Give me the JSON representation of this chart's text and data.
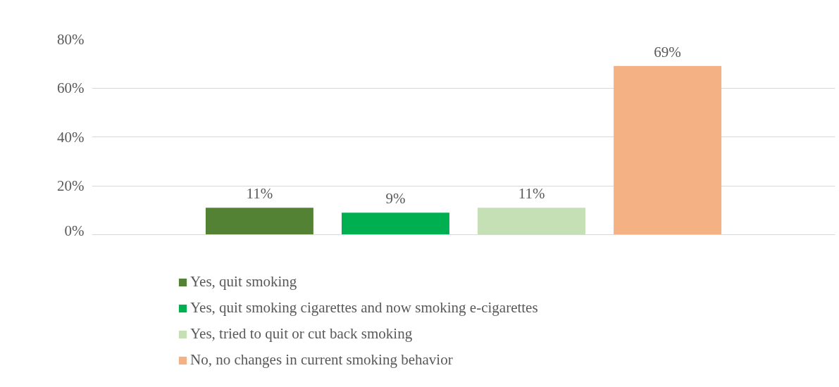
{
  "chart_data": {
    "type": "bar",
    "categories": [
      null
    ],
    "series": [
      {
        "name": "Yes, quit smoking",
        "color": "#548235",
        "values": [
          11
        ],
        "value_labels": [
          "11%"
        ]
      },
      {
        "name": "Yes, quit smoking cigarettes and now smoking e-cigarettes",
        "color": "#00b050",
        "values": [
          9
        ],
        "value_labels": [
          "9%"
        ]
      },
      {
        "name": "Yes, tried to quit or cut back smoking",
        "color": "#c5e0b4",
        "values": [
          11
        ],
        "value_labels": [
          "11%"
        ]
      },
      {
        "name": "No, no changes in current smoking behavior",
        "color": "#f4b183",
        "values": [
          69
        ],
        "value_labels": [
          "69%"
        ]
      }
    ],
    "ylim": [
      0,
      80
    ],
    "yticks": [
      {
        "value": 0,
        "label": "0%"
      },
      {
        "value": 20,
        "label": "20%"
      },
      {
        "value": 40,
        "label": "40%"
      },
      {
        "value": 60,
        "label": "60%"
      },
      {
        "value": 80,
        "label": "80%"
      }
    ],
    "grid": "y",
    "legend": "bottom"
  }
}
